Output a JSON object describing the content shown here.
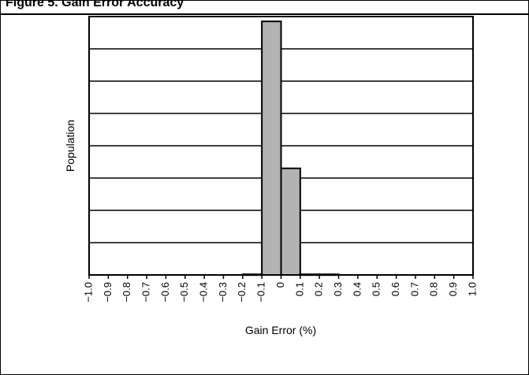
{
  "header": {
    "title": "Figure 5. Gain Error Accuracy"
  },
  "chart_data": {
    "type": "bar",
    "xlabel": "Gain Error (%)",
    "ylabel": "Population",
    "xlim": [
      -1.0,
      1.0
    ],
    "x_ticks": [
      "−1.0",
      "−0.9",
      "−0.8",
      "−0.7",
      "−0.6",
      "−0.5",
      "−0.4",
      "−0.3",
      "−0.2",
      "−0.1",
      "0",
      "0.1",
      "0.2",
      "0.3",
      "0.4",
      "0.5",
      "0.6",
      "0.7",
      "0.8",
      "0.9",
      "1.0"
    ],
    "ylim": [
      0,
      8
    ],
    "grid": true,
    "bins": [
      {
        "from": -0.2,
        "to": -0.1,
        "value": 0.02
      },
      {
        "from": -0.1,
        "to": 0.0,
        "value": 7.85
      },
      {
        "from": 0.0,
        "to": 0.1,
        "value": 3.3
      },
      {
        "from": 0.1,
        "to": 0.2,
        "value": 0.02
      },
      {
        "from": 0.2,
        "to": 0.3,
        "value": 0.02
      }
    ]
  },
  "colors": {
    "bar_fill": "#b3b3b3",
    "axis": "#000000",
    "grid": "#000000"
  }
}
